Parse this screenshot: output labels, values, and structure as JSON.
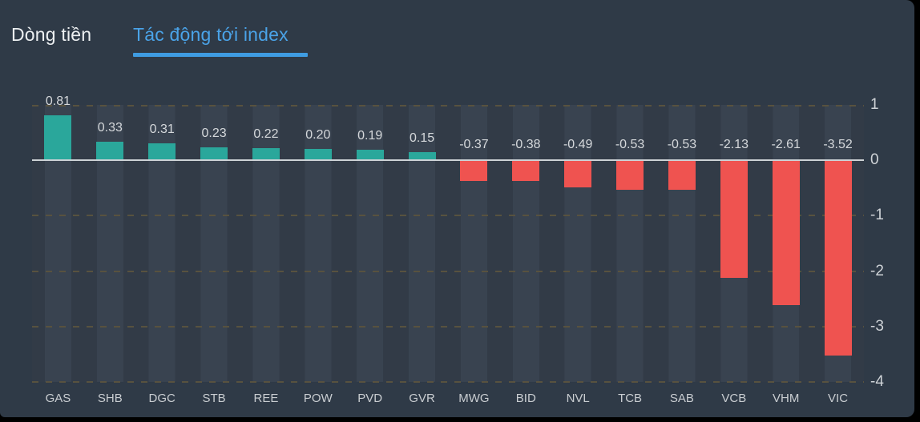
{
  "tabs": [
    {
      "label": "Dòng tiền",
      "active": false
    },
    {
      "label": "Tác động tới index",
      "active": true
    }
  ],
  "chart_data": {
    "type": "bar",
    "title": "Tác động tới index",
    "categories": [
      "GAS",
      "SHB",
      "DGC",
      "STB",
      "REE",
      "POW",
      "PVD",
      "GVR",
      "MWG",
      "BID",
      "NVL",
      "TCB",
      "SAB",
      "VCB",
      "VHM",
      "VIC"
    ],
    "values": [
      0.81,
      0.33,
      0.31,
      0.23,
      0.22,
      0.2,
      0.19,
      0.15,
      -0.37,
      -0.38,
      -0.49,
      -0.53,
      -0.53,
      -2.13,
      -2.61,
      -3.52
    ],
    "value_labels": [
      "0.81",
      "0.33",
      "0.31",
      "0.23",
      "0.22",
      "0.20",
      "0.19",
      "0.15",
      "-0.37",
      "-0.38",
      "-0.49",
      "-0.53",
      "-0.53",
      "-2.13",
      "-2.61",
      "-3.52"
    ],
    "y_ticks": [
      1,
      0,
      -1,
      -2,
      -3,
      -4
    ],
    "y_tick_labels": [
      "1",
      "0",
      "-1",
      "-2",
      "-3",
      "-4"
    ],
    "ylim": [
      -4,
      1
    ],
    "xlabel": "",
    "ylabel": "",
    "axis_position": "right",
    "grid": "dashed horizontal",
    "legend": "none"
  },
  "colors": {
    "panel_bg": "#2f3a47",
    "stripe_light": "#394350",
    "stripe_dark": "#323b47",
    "positive_bar": "#2aa79b",
    "negative_bar": "#ef5350",
    "active_tab": "#4aa3e8",
    "tab_underline": "#3f9ce2",
    "gridline_dash": "#58523f",
    "zero_line": "#cdd2d6",
    "label_text": "#d5d8db",
    "axis_text": "#cfd3d7"
  }
}
